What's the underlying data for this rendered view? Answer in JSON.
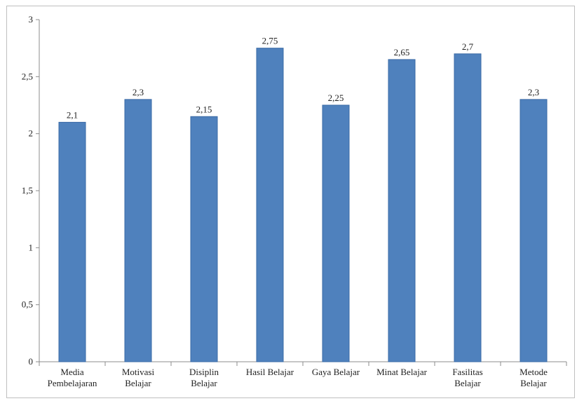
{
  "chart_data": {
    "type": "bar",
    "categories": [
      [
        "Media",
        "Pembelajaran"
      ],
      [
        "Motivasi",
        "Belajar"
      ],
      [
        "Disiplin",
        "Belajar"
      ],
      [
        "Hasil Belajar"
      ],
      [
        "Gaya Belajar"
      ],
      [
        "Minat Belajar"
      ],
      [
        "Fasilitas",
        "Belajar"
      ],
      [
        "Metode",
        "Belajar"
      ]
    ],
    "values": [
      2.1,
      2.3,
      2.15,
      2.75,
      2.25,
      2.65,
      2.7,
      2.3
    ],
    "data_labels": [
      "2,1",
      "2,3",
      "2,15",
      "2,75",
      "2,25",
      "2,65",
      "2,7",
      "2,3"
    ],
    "y_ticks": [
      0,
      0.5,
      1,
      1.5,
      2,
      2.5,
      3
    ],
    "y_tick_labels": [
      "0",
      "0,5",
      "1",
      "1,5",
      "2",
      "2,5",
      "3"
    ],
    "ylim": [
      0,
      3
    ],
    "grid": false,
    "legend": "none",
    "bar_color": "#4f81bd",
    "bar_edge_color": "#3a6aa6",
    "axis_color": "#8c8c8c"
  }
}
